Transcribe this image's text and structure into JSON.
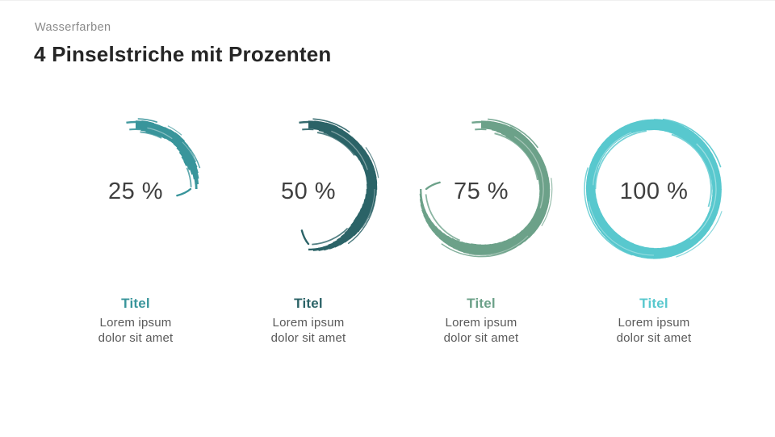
{
  "slide": {
    "eyebrow": "Wasserfarben",
    "title": "4 Pinselstriche mit Prozenten",
    "background": "#ffffff",
    "text_colors": {
      "eyebrow": "#8a8a8a",
      "title": "#262626",
      "percent": "#3f3f3f",
      "body": "#595959"
    }
  },
  "items": [
    {
      "percent": 25,
      "percent_label": "25 %",
      "color": "#39959B",
      "title": "Titel",
      "body_lines": [
        "Lorem ipsum",
        "dolor sit amet"
      ]
    },
    {
      "percent": 50,
      "percent_label": "50 %",
      "color": "#2B6367",
      "title": "Titel",
      "body_lines": [
        "Lorem ipsum",
        "dolor sit amet"
      ]
    },
    {
      "percent": 75,
      "percent_label": "75 %",
      "color": "#6CA189",
      "title": "Titel",
      "body_lines": [
        "Lorem ipsum",
        "dolor sit amet"
      ]
    },
    {
      "percent": 100,
      "percent_label": "100 %",
      "color": "#58C8CE",
      "title": "Titel",
      "body_lines": [
        "Lorem ipsum",
        "dolor sit amet"
      ]
    }
  ]
}
